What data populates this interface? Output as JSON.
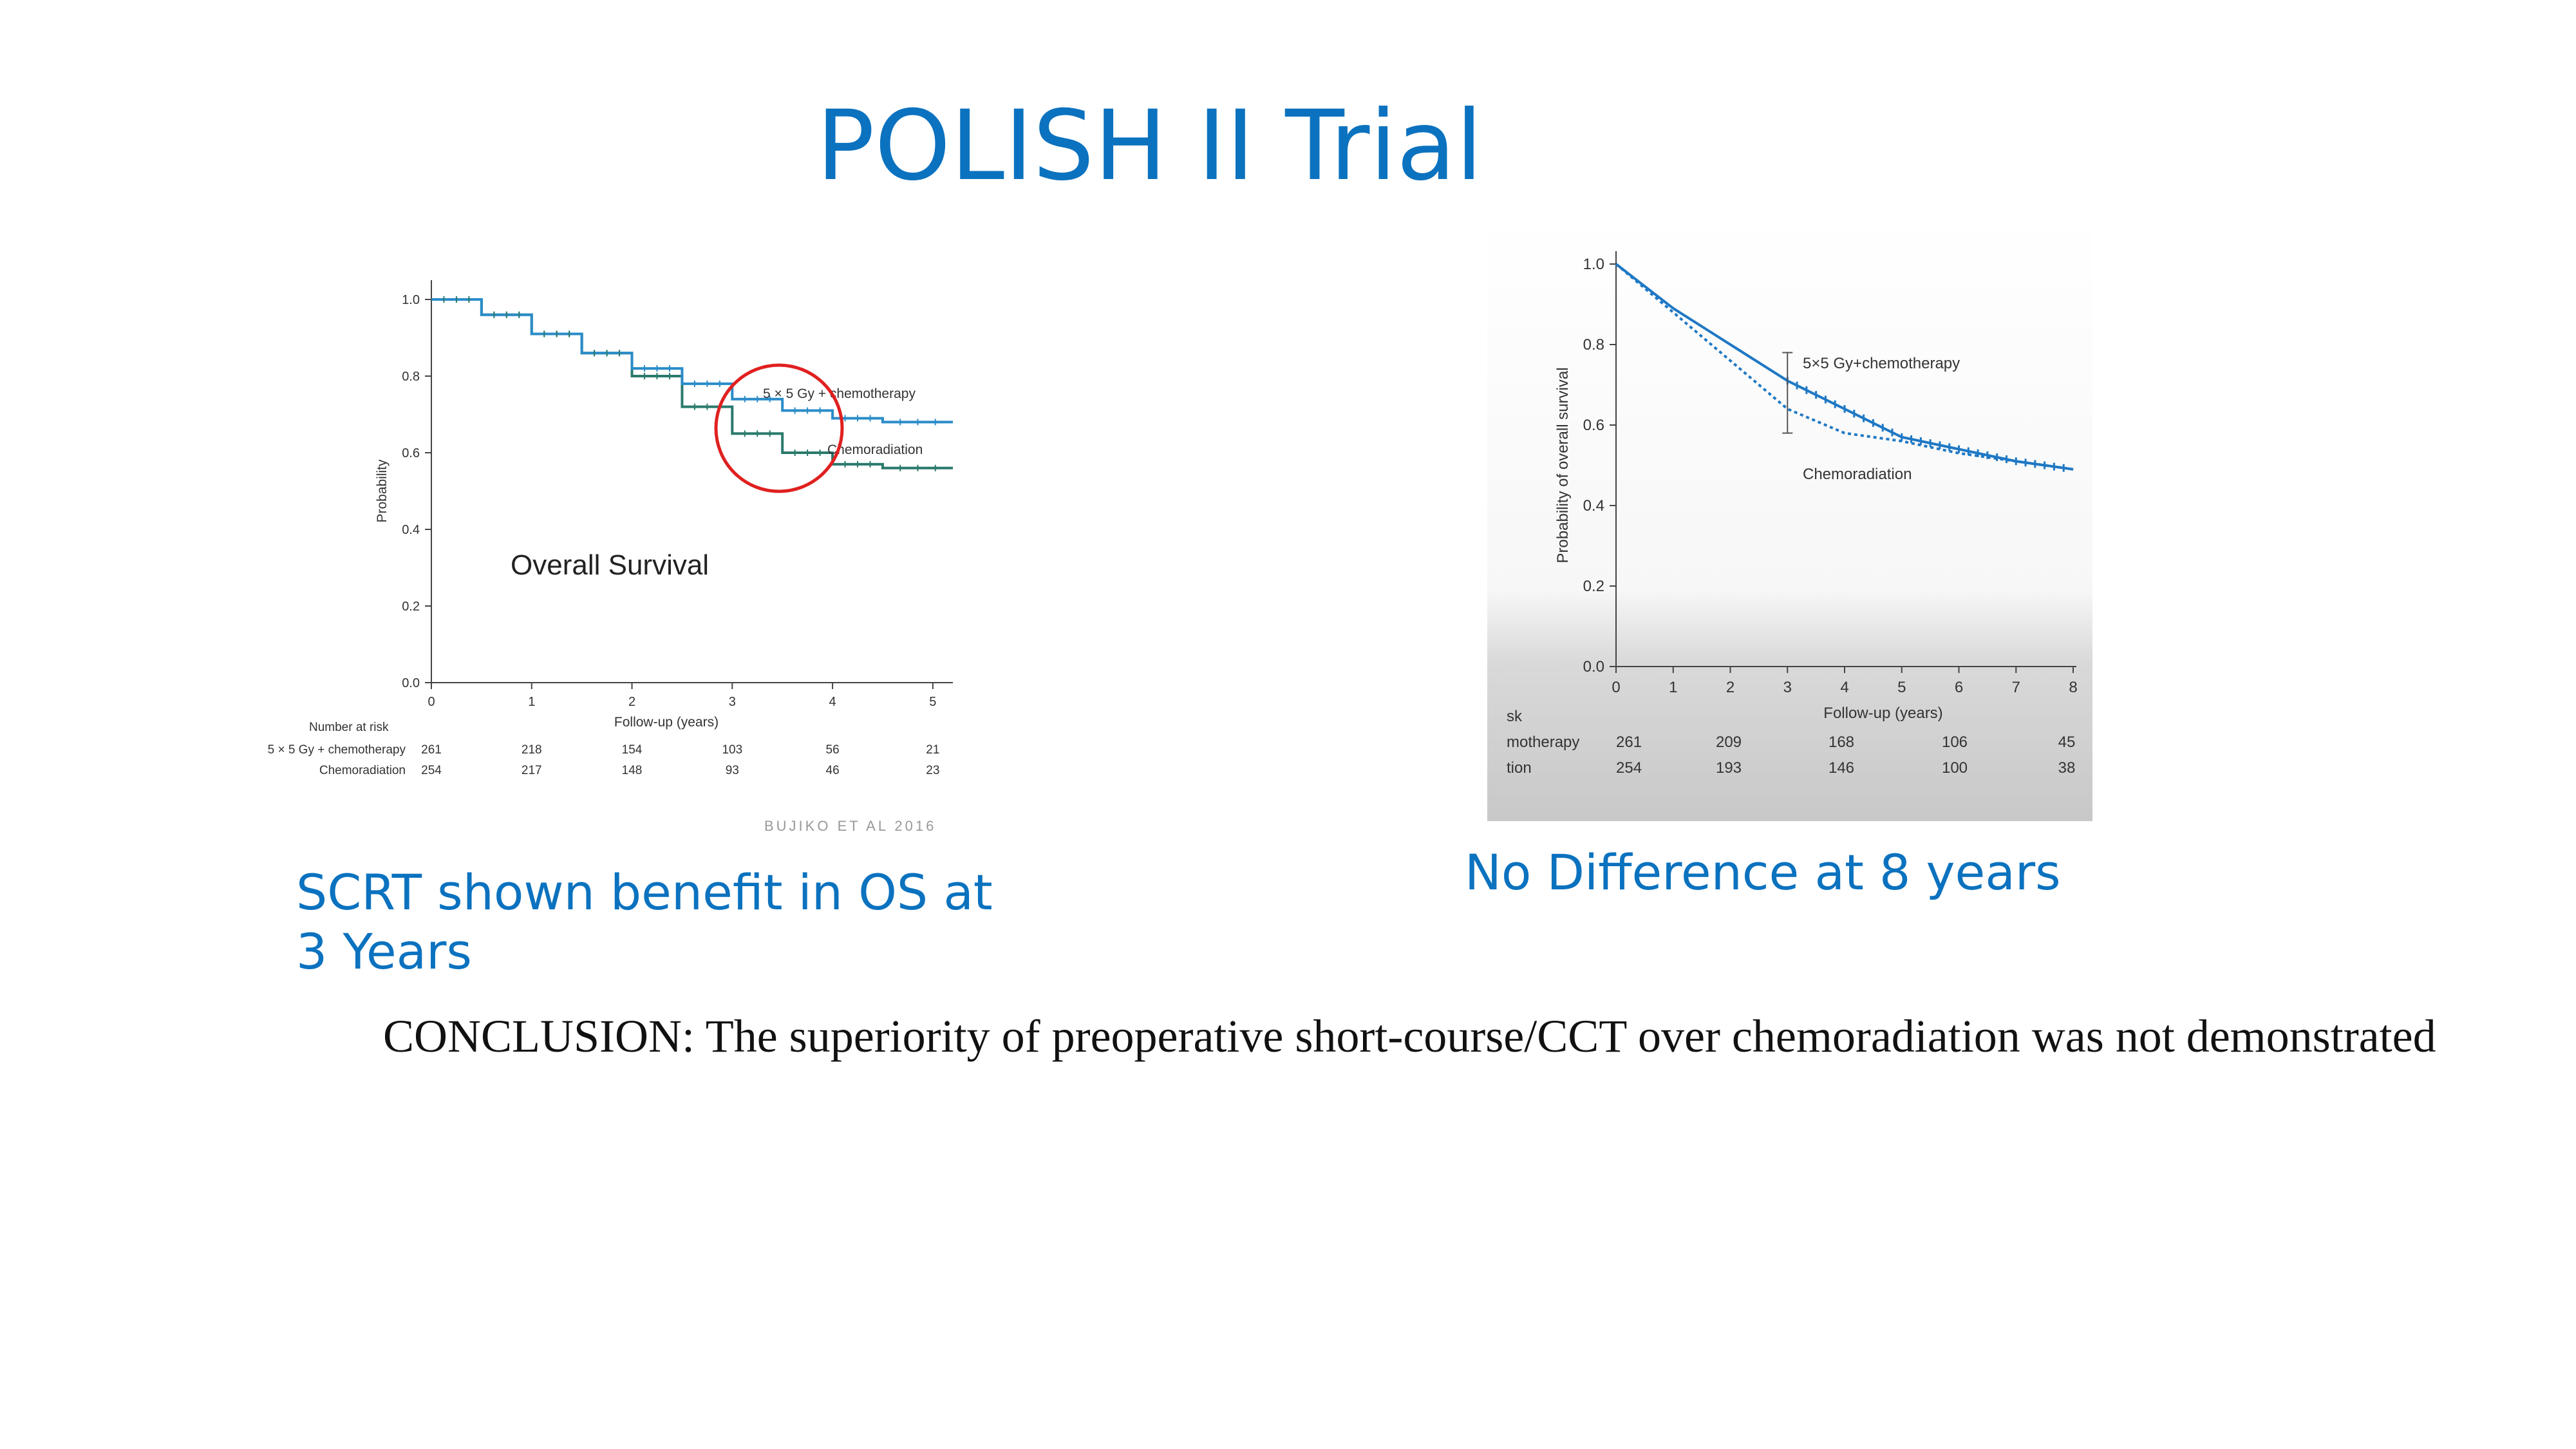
{
  "slide": {
    "title": "POLISH II Trial",
    "caption_left": "SCRT shown benefit in OS at 3 Years",
    "caption_right": "No Difference at 8 years",
    "conclusion": "CONCLUSION: The superiority of preoperative short-course/CCT over chemoradiation was not demonstrated",
    "colors": {
      "title": "#0b72bf",
      "series_scrt": "#2a8cc8",
      "series_crt": "#2a7a6c",
      "series_right": "#1f78c4",
      "circle": "#e02020"
    }
  },
  "chart_data": [
    {
      "type": "line",
      "title": "",
      "annotation": "Overall Survival",
      "watermark": "BUJIKO ET AL 2016",
      "xlabel": "Follow-up (years)",
      "ylabel": "Probability",
      "xlim": [
        0,
        5.2
      ],
      "ylim": [
        0,
        1.0
      ],
      "x_ticks": [
        "0",
        "1",
        "2",
        "3",
        "4",
        "5"
      ],
      "y_ticks": [
        "0.0",
        "0.2",
        "0.4",
        "0.6",
        "0.8",
        "1.0"
      ],
      "series": [
        {
          "name": "5 × 5 Gy + chemotherapy",
          "x": [
            0,
            0.5,
            1,
            1.5,
            2,
            2.5,
            3,
            3.5,
            4,
            4.5,
            5.2
          ],
          "y": [
            1.0,
            0.96,
            0.91,
            0.86,
            0.82,
            0.78,
            0.74,
            0.71,
            0.69,
            0.68,
            0.68
          ]
        },
        {
          "name": "Chemoradiation",
          "x": [
            0,
            0.5,
            1,
            1.5,
            2,
            2.5,
            3,
            3.5,
            4,
            4.5,
            5.2
          ],
          "y": [
            1.0,
            0.96,
            0.91,
            0.86,
            0.8,
            0.72,
            0.65,
            0.6,
            0.57,
            0.56,
            0.56
          ]
        }
      ],
      "risk_table": {
        "header": "Number at risk",
        "rows": [
          {
            "label": "5 × 5 Gy + chemotherapy",
            "values": [
              "261",
              "218",
              "154",
              "103",
              "56",
              "21"
            ]
          },
          {
            "label": "Chemoradiation",
            "values": [
              "254",
              "217",
              "148",
              "93",
              "46",
              "23"
            ]
          }
        ]
      }
    },
    {
      "type": "line",
      "title": "",
      "xlabel": "Follow-up (years)",
      "ylabel": "Probability of overall survival",
      "xlim": [
        0,
        8
      ],
      "ylim": [
        0,
        1.0
      ],
      "x_ticks": [
        "0",
        "1",
        "2",
        "3",
        "4",
        "5",
        "6",
        "7",
        "8"
      ],
      "y_ticks": [
        "0.0",
        "0.2",
        "0.4",
        "0.6",
        "0.8",
        "1.0"
      ],
      "series": [
        {
          "name": "5×5 Gy+chemotherapy",
          "x": [
            0,
            1,
            2,
            3,
            4,
            5,
            6,
            7,
            8
          ],
          "y": [
            1.0,
            0.89,
            0.8,
            0.71,
            0.64,
            0.57,
            0.54,
            0.51,
            0.49
          ]
        },
        {
          "name": "Chemoradiation",
          "x": [
            0,
            1,
            2,
            3,
            4,
            5,
            6,
            7,
            8
          ],
          "y": [
            1.0,
            0.88,
            0.76,
            0.64,
            0.58,
            0.56,
            0.53,
            0.51,
            0.49
          ]
        }
      ],
      "error_bar": {
        "x": 3,
        "y_low": 0.58,
        "y_high": 0.78
      },
      "risk_table": {
        "header": "sk",
        "rows": [
          {
            "label": "motherapy",
            "values": [
              "261",
              "209",
              "168",
              "106",
              "45"
            ]
          },
          {
            "label": "tion",
            "values": [
              "254",
              "193",
              "146",
              "100",
              "38"
            ]
          }
        ]
      }
    }
  ]
}
